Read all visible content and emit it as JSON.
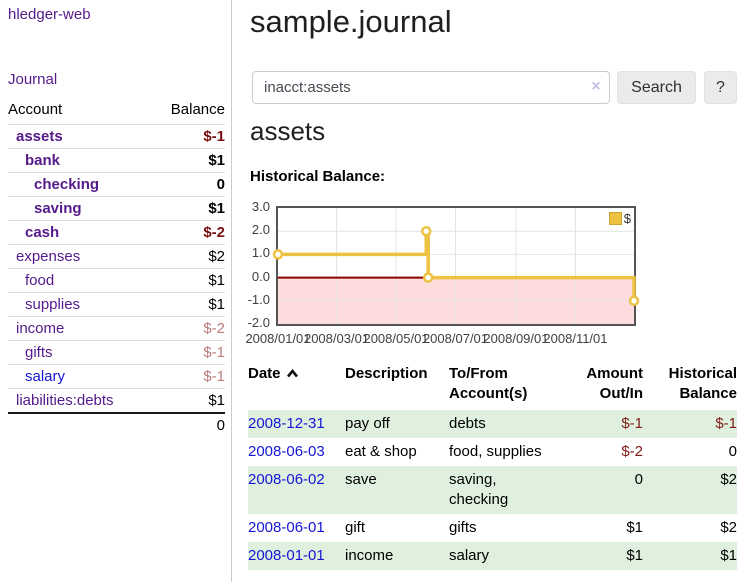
{
  "app": {
    "brand": "hledger-web",
    "nav_journal": "Journal"
  },
  "sidebar": {
    "header": {
      "account": "Account",
      "balance": "Balance"
    },
    "accounts": [
      {
        "name": "assets",
        "depth": 1,
        "balance": "$-1",
        "bold": true,
        "neg": "strong"
      },
      {
        "name": "bank",
        "depth": 2,
        "balance": "$1",
        "bold": true,
        "neg": "none"
      },
      {
        "name": "checking",
        "depth": 3,
        "balance": "0",
        "bold": true,
        "neg": "none"
      },
      {
        "name": "saving",
        "depth": 3,
        "balance": "$1",
        "bold": true,
        "neg": "none"
      },
      {
        "name": "cash",
        "depth": 2,
        "balance": "$-2",
        "bold": true,
        "neg": "strong"
      },
      {
        "name": "expenses",
        "depth": 1,
        "balance": "$2",
        "bold": false,
        "neg": "none"
      },
      {
        "name": "food",
        "depth": 2,
        "balance": "$1",
        "bold": false,
        "neg": "none"
      },
      {
        "name": "supplies",
        "depth": 2,
        "balance": "$1",
        "bold": false,
        "neg": "none"
      },
      {
        "name": "income",
        "depth": 1,
        "balance": "$-2",
        "bold": false,
        "neg": "light"
      },
      {
        "name": "gifts",
        "depth": 2,
        "balance": "$-1",
        "bold": false,
        "neg": "light"
      },
      {
        "name": "salary",
        "depth": 2,
        "balance": "$-1",
        "bold": false,
        "neg": "light",
        "link_color": "blue"
      },
      {
        "name": "liabilities:debts",
        "depth": 1,
        "balance": "$1",
        "bold": false,
        "neg": "none"
      }
    ],
    "total": "0"
  },
  "header": {
    "title": "sample.journal"
  },
  "search": {
    "value": "inacct:assets",
    "clear_glyph": "×",
    "button_label": "Search",
    "help_label": "?"
  },
  "account_page": {
    "title": "assets",
    "chart_caption": "Historical Balance:"
  },
  "chart_data": {
    "type": "line",
    "step": true,
    "title": "Historical Balance",
    "series": [
      {
        "name": "$",
        "color": "#edc240",
        "points": [
          [
            "2008-01-01",
            1
          ],
          [
            "2008-06-01",
            2
          ],
          [
            "2008-06-03",
            0
          ],
          [
            "2008-12-31",
            -1
          ]
        ]
      }
    ],
    "xlim": [
      "2008-01-01",
      "2008-12-31"
    ],
    "ylim": [
      -2,
      3
    ],
    "x_tick_labels": [
      "2008/01/01",
      "2008/03/01",
      "2008/05/01",
      "2008/07/01",
      "2008/09/01",
      "2008/11/01"
    ],
    "y_tick_labels": [
      "3.0",
      "2.0",
      "1.0",
      "0.0",
      "-1.0",
      "-2.0"
    ],
    "y_ticks": [
      3,
      2,
      1,
      0,
      -1,
      -2
    ],
    "legend": {
      "label": "$",
      "position": "top-right",
      "swatch_color": "#edc240"
    },
    "grid": true,
    "negative_fill": "#fcdcdc",
    "zero_line_color": "#8b0000",
    "border_color": "#545454"
  },
  "register": {
    "columns": [
      "Date",
      "Description",
      "To/From Account(s)",
      "Amount Out/In",
      "Historical Balance"
    ],
    "sort_column": "Date",
    "sort_direction": "ascending",
    "rows": [
      {
        "date": "2008-12-31",
        "description": "pay off",
        "accounts": "debts",
        "amount": "$-1",
        "balance": "$-1",
        "amount_neg": true,
        "balance_neg": true
      },
      {
        "date": "2008-06-03",
        "description": "eat & shop",
        "accounts": "food, supplies",
        "amount": "$-2",
        "balance": "0",
        "amount_neg": true,
        "balance_neg": false
      },
      {
        "date": "2008-06-02",
        "description": "save",
        "accounts": "saving, checking",
        "amount": "0",
        "balance": "$2",
        "amount_neg": false,
        "balance_neg": false
      },
      {
        "date": "2008-06-01",
        "description": "gift",
        "accounts": "gifts",
        "amount": "$1",
        "balance": "$2",
        "amount_neg": false,
        "balance_neg": false
      },
      {
        "date": "2008-01-01",
        "description": "income",
        "accounts": "salary",
        "amount": "$1",
        "balance": "$1",
        "amount_neg": false,
        "balance_neg": false
      }
    ]
  },
  "colors": {
    "link_visited": "#551a8b",
    "link_blue": "#1515d6",
    "negative_strong": "#7a1010",
    "negative_light": "#bd7b7b",
    "row_stripe_green": "#dff0df",
    "chart_gold": "#edc240"
  }
}
